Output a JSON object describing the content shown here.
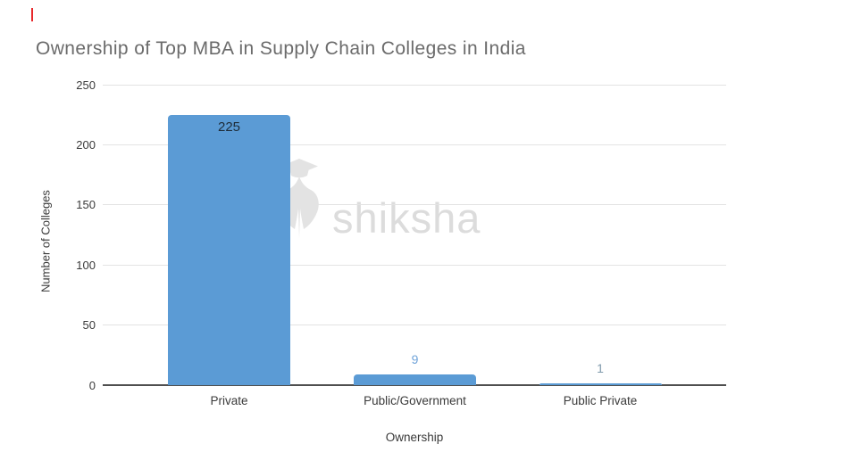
{
  "chart_data": {
    "type": "bar",
    "title": "Ownership of Top MBA in Supply Chain Colleges in India",
    "xlabel": "Ownership",
    "ylabel": "Number of Colleges",
    "categories": [
      "Private",
      "Public/Government",
      "Public Private"
    ],
    "values": [
      225,
      9,
      1
    ],
    "ylim": [
      0,
      250
    ],
    "yticks": [
      0,
      50,
      100,
      150,
      200,
      250
    ],
    "grid": true,
    "legend": false,
    "bar_color": "#5b9bd5",
    "value_labels": [
      {
        "text": "225",
        "placement": "inside",
        "color": "#1e2c39"
      },
      {
        "text": "9",
        "placement": "above",
        "color": "#6fa3d9"
      },
      {
        "text": "1",
        "placement": "above",
        "color": "#7e99ab"
      }
    ]
  },
  "watermark": {
    "text": "shiksha",
    "icon": "shiksha-graduation-cap-bird-logo"
  },
  "colors": {
    "title": "#6b6b6b",
    "axis_text": "#3a3a3a",
    "gridline": "#e3e3e3",
    "axis_line": "#4f4f4f",
    "bar": "#5b9bd5",
    "watermark_text": "#dcdcdc",
    "watermark_icon": "#e3e3e3",
    "corner_mark": "#e8282b"
  }
}
